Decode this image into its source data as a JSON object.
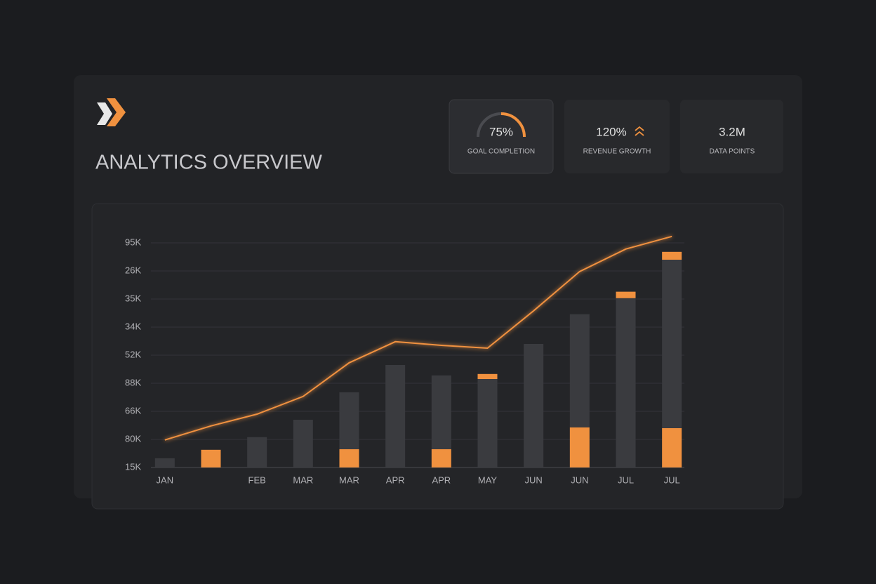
{
  "header": {
    "title": "ANALYTICS OVERVIEW"
  },
  "kpis": [
    {
      "value": "75%",
      "label": "GOAL COMPLETION"
    },
    {
      "value": "120%",
      "label": "REVENUE GROWTH"
    },
    {
      "value": "3.2M",
      "label": "DATA POINTS"
    }
  ],
  "chart_data": {
    "type": "bar",
    "categories": [
      "JAN",
      null,
      "FEB",
      "MAR",
      "MAR",
      "APR",
      "APR",
      "MAY",
      "JUN",
      "JUN",
      "JUL",
      "JUL"
    ],
    "series": [
      {
        "color": "#f0913f",
        "values": [
          0,
          0.63,
          0,
          0,
          0.65,
          0,
          0.65,
          0,
          0,
          1.43,
          0,
          1.4
        ]
      },
      {
        "color": "#3a3b3f",
        "values": [
          0.33,
          0,
          1.08,
          1.7,
          2.03,
          3.65,
          2.63,
          3.15,
          4.4,
          4.03,
          6.03,
          6.0
        ]
      },
      {
        "color": "#f0913f",
        "values": [
          0,
          0,
          0,
          0,
          0,
          0,
          0,
          0.18,
          0,
          0,
          0.23,
          0.28
        ]
      }
    ],
    "line": {
      "color": "#f0913f",
      "values": [
        0.98,
        1.48,
        1.9,
        2.53,
        3.73,
        4.48,
        4.35,
        4.25,
        5.58,
        6.98,
        7.78,
        8.23
      ]
    },
    "ylim": [
      0,
      8
    ],
    "yticks": [
      {
        "value": 0,
        "label": "15K"
      },
      {
        "value": 1,
        "label": "80K"
      },
      {
        "value": 2,
        "label": "66K"
      },
      {
        "value": 3,
        "label": "88K"
      },
      {
        "value": 4,
        "label": "52K"
      },
      {
        "value": 5,
        "label": "34K"
      },
      {
        "value": 6,
        "label": "35K"
      },
      {
        "value": 7,
        "label": "26K"
      },
      {
        "value": 8,
        "label": "95K"
      }
    ],
    "grid": true
  }
}
